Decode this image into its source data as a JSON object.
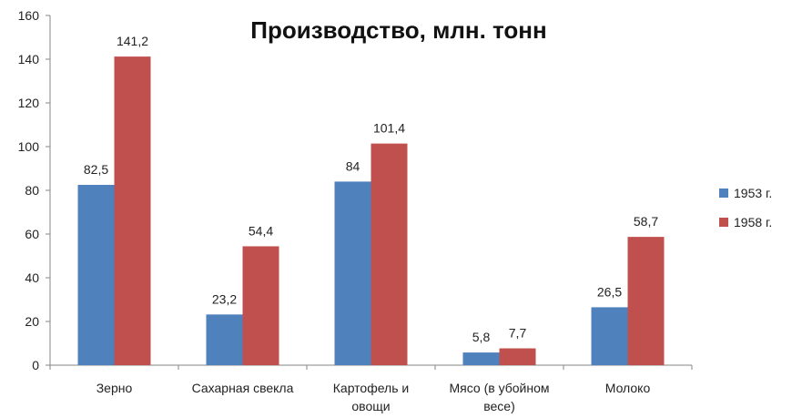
{
  "chart_data": {
    "type": "bar",
    "title": "Производство, млн. тонн",
    "categories": [
      [
        "Зерно"
      ],
      [
        "Сахарная свекла"
      ],
      [
        "Картофель и",
        "овощи"
      ],
      [
        "Мясо (в убойном",
        "весе)"
      ],
      [
        "Молоко"
      ]
    ],
    "series": [
      {
        "name": "1953 г.",
        "color": "#4f81bd",
        "values": [
          82.5,
          23.2,
          84,
          5.8,
          26.5
        ],
        "labels": [
          "82,5",
          "23,2",
          "84",
          "5,8",
          "26,5"
        ]
      },
      {
        "name": "1958 г.",
        "color": "#c0504d",
        "values": [
          141.2,
          54.4,
          101.4,
          7.7,
          58.7
        ],
        "labels": [
          "141,2",
          "54,4",
          "101,4",
          "7,7",
          "58,7"
        ]
      }
    ],
    "ylim": [
      0,
      160
    ],
    "yticks": [
      0,
      20,
      40,
      60,
      80,
      100,
      120,
      140,
      160
    ],
    "grid": false,
    "legend": "right"
  }
}
